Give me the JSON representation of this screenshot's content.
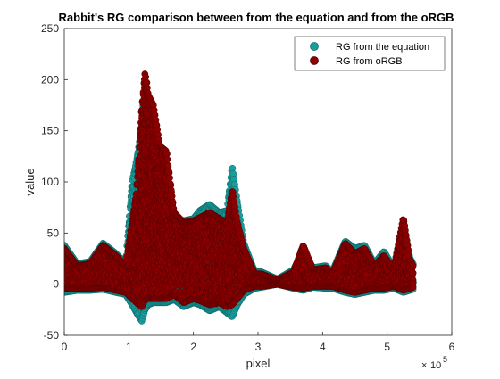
{
  "chart_data": {
    "type": "scatter",
    "title": "Rabbit's RG comparison between from the equation and from the oRGB",
    "xlabel": "pixel",
    "ylabel": "value",
    "x_exponent_label": "10",
    "x_exponent_power": "5",
    "xlim": [
      0,
      6
    ],
    "ylim": [
      -50,
      250
    ],
    "x_ticks": [
      0,
      1,
      2,
      3,
      4,
      5,
      6
    ],
    "x_tick_labels": [
      "0",
      "1",
      "2",
      "3",
      "4",
      "5",
      "6"
    ],
    "y_ticks": [
      -50,
      0,
      50,
      100,
      150,
      200,
      250
    ],
    "y_tick_labels": [
      "-50",
      "0",
      "50",
      "100",
      "150",
      "200",
      "250"
    ],
    "grid": false,
    "legend_position": "top-right",
    "series": [
      {
        "name": "RG from the equation",
        "color": "#1a9d9d",
        "edge_color": "#0d6b6b",
        "bands": [
          {
            "x": 0.0,
            "low": -8,
            "high": 38
          },
          {
            "x": 0.2,
            "low": -6,
            "high": 20
          },
          {
            "x": 0.4,
            "low": -6,
            "high": 22
          },
          {
            "x": 0.6,
            "low": -5,
            "high": 40
          },
          {
            "x": 0.8,
            "low": -8,
            "high": 30
          },
          {
            "x": 0.95,
            "low": -10,
            "high": 20
          },
          {
            "x": 1.05,
            "low": -20,
            "high": 100
          },
          {
            "x": 1.12,
            "low": -28,
            "high": 120
          },
          {
            "x": 1.2,
            "low": -36,
            "high": 155
          },
          {
            "x": 1.25,
            "low": -25,
            "high": 200
          },
          {
            "x": 1.3,
            "low": -20,
            "high": 175
          },
          {
            "x": 1.38,
            "low": -18,
            "high": 165
          },
          {
            "x": 1.48,
            "low": -18,
            "high": 130
          },
          {
            "x": 1.58,
            "low": -18,
            "high": 75
          },
          {
            "x": 1.7,
            "low": -15,
            "high": 65
          },
          {
            "x": 1.85,
            "low": -22,
            "high": 62
          },
          {
            "x": 2.0,
            "low": -18,
            "high": 64
          },
          {
            "x": 2.1,
            "low": -20,
            "high": 72
          },
          {
            "x": 2.25,
            "low": -26,
            "high": 78
          },
          {
            "x": 2.4,
            "low": -22,
            "high": 70
          },
          {
            "x": 2.52,
            "low": -28,
            "high": 72
          },
          {
            "x": 2.6,
            "low": -32,
            "high": 115
          },
          {
            "x": 2.68,
            "low": -20,
            "high": 80
          },
          {
            "x": 2.78,
            "low": -10,
            "high": 40
          },
          {
            "x": 2.95,
            "low": -4,
            "high": 12
          },
          {
            "x": 3.05,
            "low": -3,
            "high": 12
          },
          {
            "x": 3.3,
            "low": 0,
            "high": 5
          },
          {
            "x": 3.55,
            "low": -4,
            "high": 14
          },
          {
            "x": 3.7,
            "low": -6,
            "high": 34
          },
          {
            "x": 3.85,
            "low": -3,
            "high": 16
          },
          {
            "x": 4.05,
            "low": -4,
            "high": 18
          },
          {
            "x": 4.15,
            "low": -4,
            "high": 12
          },
          {
            "x": 4.35,
            "low": -8,
            "high": 42
          },
          {
            "x": 4.5,
            "low": -10,
            "high": 35
          },
          {
            "x": 4.65,
            "low": -8,
            "high": 38
          },
          {
            "x": 4.8,
            "low": -6,
            "high": 20
          },
          {
            "x": 4.95,
            "low": -6,
            "high": 32
          },
          {
            "x": 5.1,
            "low": -4,
            "high": 16
          },
          {
            "x": 5.25,
            "low": -8,
            "high": 60
          },
          {
            "x": 5.35,
            "low": -6,
            "high": 26
          },
          {
            "x": 5.4,
            "low": -5,
            "high": 20
          }
        ]
      },
      {
        "name": "RG from oRGB",
        "color": "#8b0000",
        "edge_color": "#5a0000",
        "bands": [
          {
            "x": 0.0,
            "low": -4,
            "high": 35
          },
          {
            "x": 0.2,
            "low": -4,
            "high": 18
          },
          {
            "x": 0.4,
            "low": -4,
            "high": 20
          },
          {
            "x": 0.6,
            "low": -3,
            "high": 38
          },
          {
            "x": 0.8,
            "low": -6,
            "high": 28
          },
          {
            "x": 0.95,
            "low": -8,
            "high": 18
          },
          {
            "x": 1.05,
            "low": -14,
            "high": 60
          },
          {
            "x": 1.12,
            "low": -18,
            "high": 90
          },
          {
            "x": 1.2,
            "low": -22,
            "high": 170
          },
          {
            "x": 1.25,
            "low": -15,
            "high": 207
          },
          {
            "x": 1.3,
            "low": -14,
            "high": 185
          },
          {
            "x": 1.38,
            "low": -14,
            "high": 175
          },
          {
            "x": 1.48,
            "low": -14,
            "high": 135
          },
          {
            "x": 1.58,
            "low": -14,
            "high": 130
          },
          {
            "x": 1.7,
            "low": -10,
            "high": 70
          },
          {
            "x": 1.85,
            "low": -18,
            "high": 60
          },
          {
            "x": 2.0,
            "low": -14,
            "high": 62
          },
          {
            "x": 2.1,
            "low": -16,
            "high": 65
          },
          {
            "x": 2.25,
            "low": -20,
            "high": 70
          },
          {
            "x": 2.4,
            "low": -18,
            "high": 64
          },
          {
            "x": 2.52,
            "low": -22,
            "high": 60
          },
          {
            "x": 2.6,
            "low": -20,
            "high": 92
          },
          {
            "x": 2.68,
            "low": -14,
            "high": 60
          },
          {
            "x": 2.78,
            "low": -6,
            "high": 35
          },
          {
            "x": 2.95,
            "low": -2,
            "high": 10
          },
          {
            "x": 3.05,
            "low": -2,
            "high": 10
          },
          {
            "x": 3.3,
            "low": 0,
            "high": 4
          },
          {
            "x": 3.55,
            "low": -3,
            "high": 12
          },
          {
            "x": 3.7,
            "low": -4,
            "high": 38
          },
          {
            "x": 3.85,
            "low": -2,
            "high": 14
          },
          {
            "x": 4.05,
            "low": -2,
            "high": 16
          },
          {
            "x": 4.15,
            "low": -2,
            "high": 10
          },
          {
            "x": 4.35,
            "low": -6,
            "high": 40
          },
          {
            "x": 4.5,
            "low": -8,
            "high": 30
          },
          {
            "x": 4.65,
            "low": -6,
            "high": 35
          },
          {
            "x": 4.8,
            "low": -4,
            "high": 18
          },
          {
            "x": 4.95,
            "low": -4,
            "high": 28
          },
          {
            "x": 5.1,
            "low": -2,
            "high": 14
          },
          {
            "x": 5.25,
            "low": -6,
            "high": 65
          },
          {
            "x": 5.35,
            "low": -4,
            "high": 24
          },
          {
            "x": 5.4,
            "low": -3,
            "high": 18
          }
        ]
      }
    ]
  }
}
